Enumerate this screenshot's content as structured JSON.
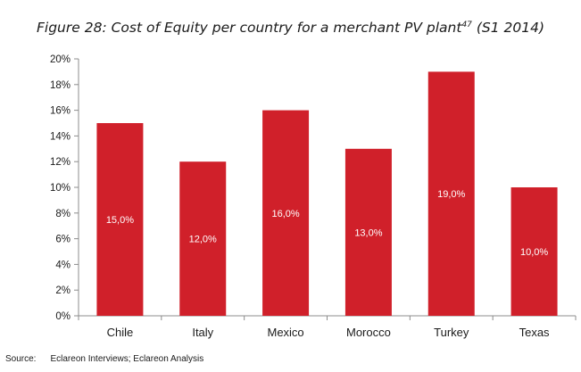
{
  "title": {
    "main": "Figure 28: Cost of Equity per country for a merchant PV plant",
    "footnote": "47",
    "period": " (S1 2014)"
  },
  "source": {
    "label": "Source:",
    "text": "Eclareon Interviews; Eclareon Analysis"
  },
  "colors": {
    "bar": "#d0202a",
    "data_label": "#ffffff",
    "axis": "#8c8c8c"
  },
  "chart_data": {
    "type": "bar",
    "categories": [
      "Chile",
      "Italy",
      "Mexico",
      "Morocco",
      "Turkey",
      "Texas"
    ],
    "values": [
      15,
      12,
      16,
      13,
      19,
      10
    ],
    "data_labels": [
      "15,0%",
      "12,0%",
      "16,0%",
      "13,0%",
      "19,0%",
      "10,0%"
    ],
    "yticks": [
      0,
      2,
      4,
      6,
      8,
      10,
      12,
      14,
      16,
      18,
      20
    ],
    "ytick_labels": [
      "0%",
      "2%",
      "4%",
      "6%",
      "8%",
      "10%",
      "12%",
      "14%",
      "16%",
      "18%",
      "20%"
    ],
    "ylim": [
      0,
      20
    ],
    "title": "Figure 28: Cost of Equity per country for a merchant PV plant47 (S1 2014)",
    "xlabel": "",
    "ylabel": "",
    "grid": false,
    "legend": "none"
  }
}
